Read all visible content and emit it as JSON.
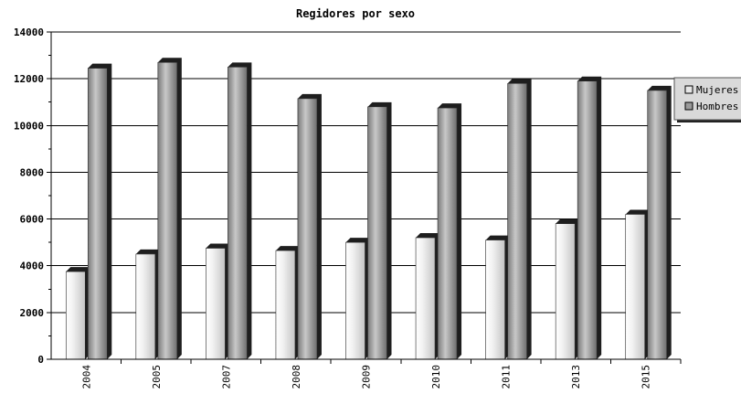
{
  "chart_data": {
    "type": "bar",
    "title": "Regidores por sexo",
    "xlabel": "",
    "ylabel": "",
    "categories": [
      "2004",
      "2005",
      "2007",
      "2008",
      "2009",
      "2010",
      "2011",
      "2013",
      "2015"
    ],
    "series": [
      {
        "name": "Mujeres",
        "values": [
          3750,
          4500,
          4750,
          4650,
          5000,
          5200,
          5100,
          5800,
          6200
        ]
      },
      {
        "name": "Hombres",
        "values": [
          12450,
          12700,
          12500,
          11150,
          10800,
          10750,
          11800,
          11900,
          11500
        ]
      }
    ],
    "ylim": [
      0,
      14000
    ],
    "yticks": [
      "0",
      "2000",
      "4000",
      "6000",
      "8000",
      "10000",
      "12000",
      "14000"
    ],
    "grid": true,
    "legend_position": "right",
    "colors": {
      "Mujeres": "#e6e6e6",
      "Hombres": "#9a9a9a",
      "shadow": "#1e1e1e",
      "grid": "#000000"
    }
  }
}
